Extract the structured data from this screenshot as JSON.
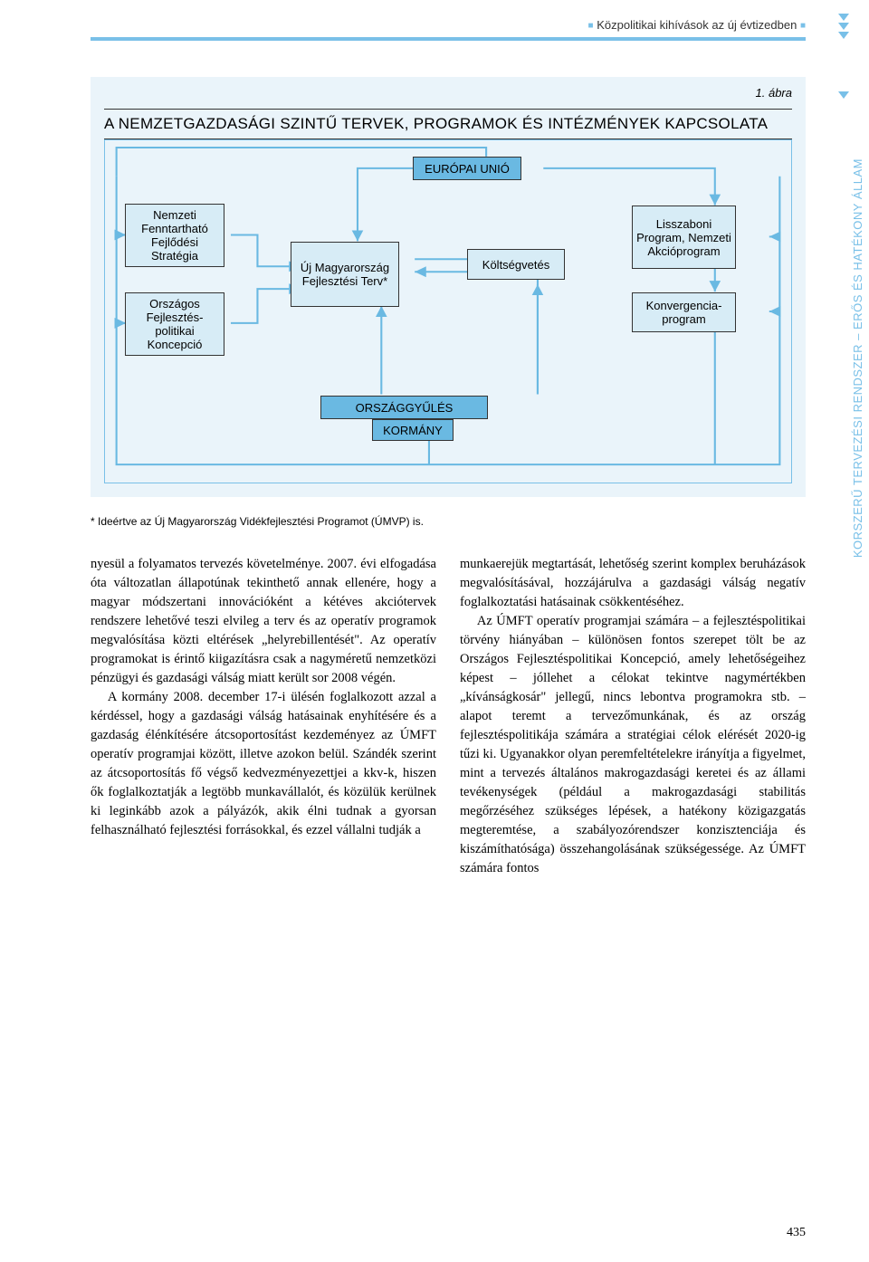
{
  "header": {
    "running_title": "Közpolitikai kihívások az új évtizedben"
  },
  "figure": {
    "title": "A NEMZETGAZDASÁGI SZINTŰ TERVEK, PROGRAMOK ÉS INTÉZMÉNYEK KAPCSOLATA",
    "number": "1. ábra",
    "nodes": {
      "eu": "EURÓPAI UNIÓ",
      "nffs": "Nemzeti Fenntartható Fejlődési Stratégia",
      "ofpk": "Országos Fejlesztés-politikai Koncepció",
      "umft": "Új Magyarország Fejlesztési Terv*",
      "kolts": "Költségvetés",
      "lisszab": "Lisszaboni Program, Nemzeti Akcióprogram",
      "konv": "Konvergencia-program",
      "oggy": "ORSZÁGGYŰLÉS",
      "korm": "KORMÁNY"
    },
    "side_text": "KORSZERŰ TERVEZÉSI RENDSZER – ERŐS ÉS HATÉKONY ÁLLAM",
    "footnote": "* Ideértve az Új Magyarország Vidékfejlesztési Programot (ÚMVP) is.",
    "colors": {
      "figure_bg": "#eaf4fa",
      "box_blue": "#6ab9e2",
      "box_light": "#d7ecf6",
      "accent": "#79c0e8",
      "border": "#333333"
    }
  },
  "body": {
    "col1": "nyesül a folyamatos tervezés követelménye. 2007. évi elfogadása óta változatlan állapotúnak tekinthető annak ellenére, hogy a magyar módszertani innovációként a kétéves akciótervek rendszere lehetővé teszi elvileg a terv és az operatív programok megvalósítása közti eltérések „helyrebillentését\". Az operatív programokat is érintő kiigazításra csak a nagyméretű nemzetközi pénzügyi és gazdasági válság miatt került sor 2008 végén.\n\nA kormány 2008. december 17-i ülésén foglalkozott azzal a kérdéssel, hogy a gazdasági válság hatásainak enyhítésére és a gazdaság élénkítésére átcsoportosítást kezdeményez az ÚMFT operatív programjai között, illetve azokon belül. Szándék szerint az átcsoportosítás fő végső kedvezményezettjei a kkv-k, hiszen ők foglalkoztatják a legtöbb munkavállalót, és közülük kerülnek ki leginkább azok a pályázók, akik élni tudnak a gyorsan felhasználható fejlesztési forrásokkal, és ezzel vállalni tudják a",
    "col2": "munkaerejük megtartását, lehetőség szerint komplex beruházások megvalósításával, hozzájárulva a gazdasági válság negatív foglalkoztatási hatásainak csökkentéséhez.\n\nAz ÚMFT operatív programjai számára – a fejlesztéspolitikai törvény hiányában – különösen fontos szerepet tölt be az Országos Fejlesztéspolitikai Koncepció, amely lehetőségeihez képest – jóllehet a célokat tekintve nagymértékben „kívánságkosár\" jellegű, nincs lebontva programokra stb. – alapot teremt a tervezőmunkának, és az ország fejlesztéspolitikája számára a stratégiai célok elérését 2020-ig tűzi ki. Ugyanakkor olyan peremfeltételekre irányítja a figyelmet, mint a tervezés általános makrogazdasági keretei és az állami tevékenységek (például a makrogazdasági stabilitás megőrzéséhez szükséges lépések, a hatékony közigazgatás megteremtése, a szabályozórendszer konzisztenciája és kiszámíthatósága) összehangolásának szükségessége. Az ÚMFT számára fontos"
  },
  "page_number": "435"
}
